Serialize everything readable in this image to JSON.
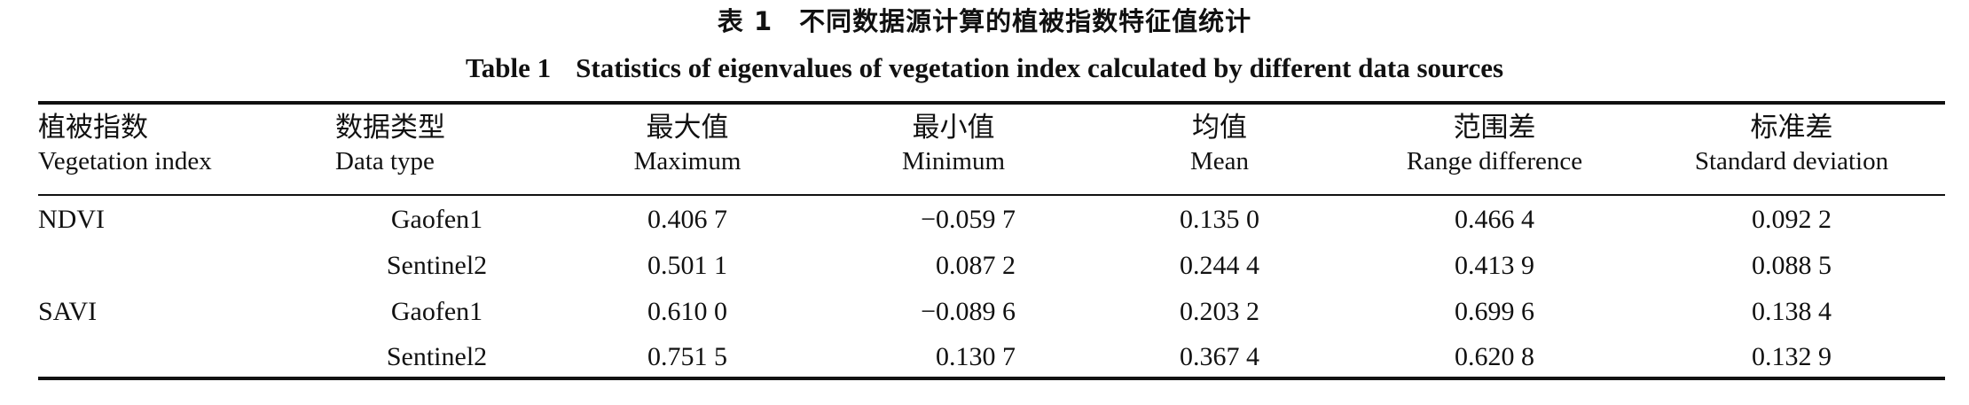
{
  "caption": {
    "zh": "表 1　不同数据源计算的植被指数特征值统计",
    "en_num": "Table 1",
    "en_text": "Statistics of eigenvalues of vegetation index calculated by different data sources"
  },
  "table": {
    "headers": [
      {
        "zh": "植被指数",
        "en": "Vegetation index"
      },
      {
        "zh": "数据类型",
        "en": "Data type"
      },
      {
        "zh": "最大值",
        "en": "Maximum"
      },
      {
        "zh": "最小值",
        "en": "Minimum"
      },
      {
        "zh": "均值",
        "en": "Mean"
      },
      {
        "zh": "范围差",
        "en": "Range difference"
      },
      {
        "zh": "标准差",
        "en": "Standard deviation"
      }
    ],
    "rows": [
      {
        "index": "NDVI",
        "type": "Gaofen1",
        "max": "0.406 7",
        "min": "−0.059 7",
        "mean": "0.135 0",
        "range": "0.466 4",
        "std": "0.092 2"
      },
      {
        "index": "",
        "type": "Sentinel2",
        "max": "0.501 1",
        "min": "0.087 2",
        "mean": "0.244 4",
        "range": "0.413 9",
        "std": "0.088 5"
      },
      {
        "index": "SAVI",
        "type": "Gaofen1",
        "max": "0.610 0",
        "min": "−0.089 6",
        "mean": "0.203 2",
        "range": "0.699 6",
        "std": "0.138 4"
      },
      {
        "index": "",
        "type": "Sentinel2",
        "max": "0.751 5",
        "min": "0.130 7",
        "mean": "0.367 4",
        "range": "0.620 8",
        "std": "0.132 9"
      }
    ]
  }
}
